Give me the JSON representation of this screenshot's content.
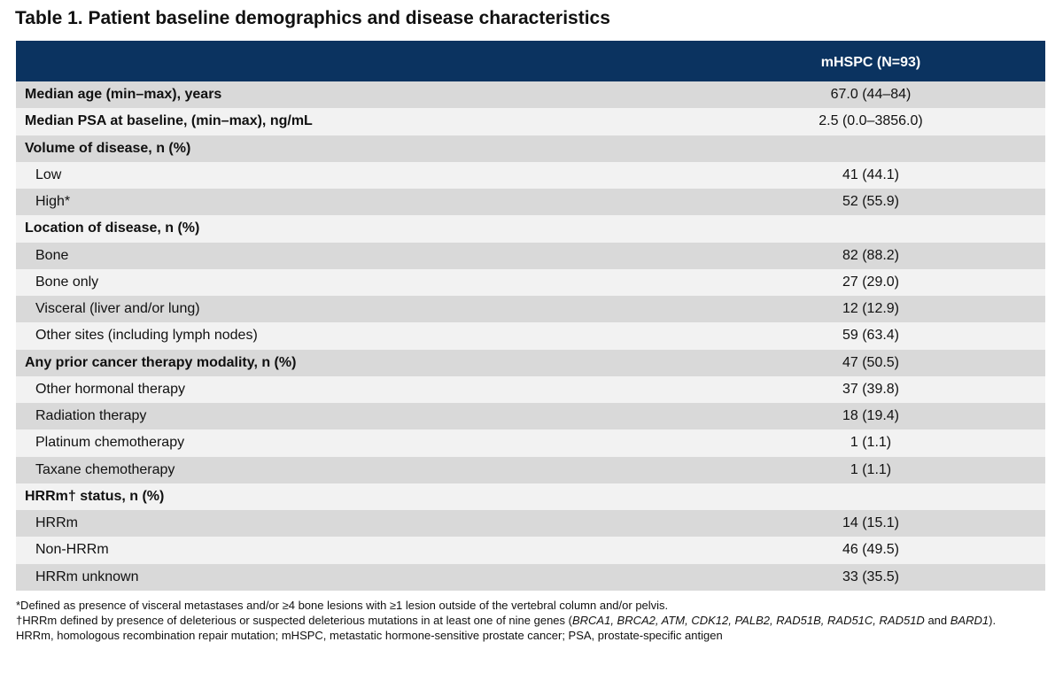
{
  "title": "Table 1. Patient baseline demographics and disease characteristics",
  "header": {
    "column": "mHSPC (N=93)"
  },
  "rows": [
    {
      "label": "Median age (min–max), years",
      "value": "67.0 (44–84)",
      "bold": true,
      "indent": false
    },
    {
      "label": "Median PSA at baseline, (min–max), ng/mL",
      "value": "2.5 (0.0–3856.0)",
      "bold": true,
      "indent": false
    },
    {
      "label": "Volume of disease, n (%)",
      "value": "",
      "bold": true,
      "indent": false
    },
    {
      "label": "Low",
      "value": "41 (44.1)",
      "bold": false,
      "indent": true
    },
    {
      "label": "High*",
      "value": "52 (55.9)",
      "bold": false,
      "indent": true
    },
    {
      "label": "Location of disease, n (%)",
      "value": "",
      "bold": true,
      "indent": false
    },
    {
      "label": "Bone",
      "value": "82 (88.2)",
      "bold": false,
      "indent": true
    },
    {
      "label": "Bone only",
      "value": "27 (29.0)",
      "bold": false,
      "indent": true
    },
    {
      "label": "Visceral (liver and/or lung)",
      "value": "12 (12.9)",
      "bold": false,
      "indent": true
    },
    {
      "label": "Other sites (including lymph nodes)",
      "value": "59 (63.4)",
      "bold": false,
      "indent": true
    },
    {
      "label": "Any prior cancer therapy modality, n (%)",
      "value": "47 (50.5)",
      "bold": true,
      "indent": false
    },
    {
      "label": "Other hormonal therapy",
      "value": "37 (39.8)",
      "bold": false,
      "indent": true
    },
    {
      "label": "Radiation therapy",
      "value": "18 (19.4)",
      "bold": false,
      "indent": true
    },
    {
      "label": "Platinum chemotherapy",
      "value": "1 (1.1)",
      "bold": false,
      "indent": true
    },
    {
      "label": "Taxane chemotherapy",
      "value": "1 (1.1)",
      "bold": false,
      "indent": true
    },
    {
      "label": "HRRm† status, n (%)",
      "value": "",
      "bold": true,
      "indent": false
    },
    {
      "label": "HRRm",
      "value": "14 (15.1)",
      "bold": false,
      "indent": true
    },
    {
      "label": "Non-HRRm",
      "value": "46 (49.5)",
      "bold": false,
      "indent": true
    },
    {
      "label": "HRRm unknown",
      "value": "33 (35.5)",
      "bold": false,
      "indent": true
    }
  ],
  "footnotes": {
    "note1": "*Defined as presence of visceral metastases and/or ≥4 bone lesions with ≥1 lesion outside of the vertebral column and/or pelvis.",
    "note2_prefix": "†HRRm defined by presence of deleterious or suspected deleterious mutations in at least one of nine genes (",
    "note2_genes": "BRCA1, BRCA2, ATM, CDK12, PALB2, RAD51B, RAD51C, RAD51D",
    "note2_and": " and ",
    "note2_last_gene": "BARD1",
    "note2_suffix": ").",
    "note3": "HRRm, homologous recombination repair mutation; mHSPC, metastatic hormone-sensitive prostate cancer; PSA, prostate-specific antigen"
  },
  "colors": {
    "header_bg": "#0b3360",
    "row_shade": "#d9d9d9",
    "row_plain": "#f2f2f2"
  }
}
